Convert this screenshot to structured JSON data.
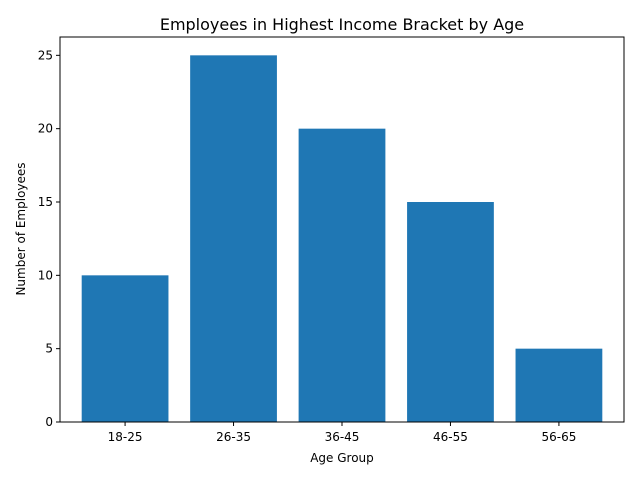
{
  "chart_data": {
    "type": "bar",
    "title": "Employees in Highest Income Bracket by Age",
    "xlabel": "Age Group",
    "ylabel": "Number of Employees",
    "categories": [
      "18-25",
      "26-35",
      "36-45",
      "46-55",
      "56-65"
    ],
    "values": [
      10,
      25,
      20,
      15,
      5
    ],
    "ylim": [
      0,
      26.25
    ],
    "yticks": [
      0,
      5,
      10,
      15,
      20,
      25
    ],
    "color": "#1f77b4",
    "grid": false
  }
}
